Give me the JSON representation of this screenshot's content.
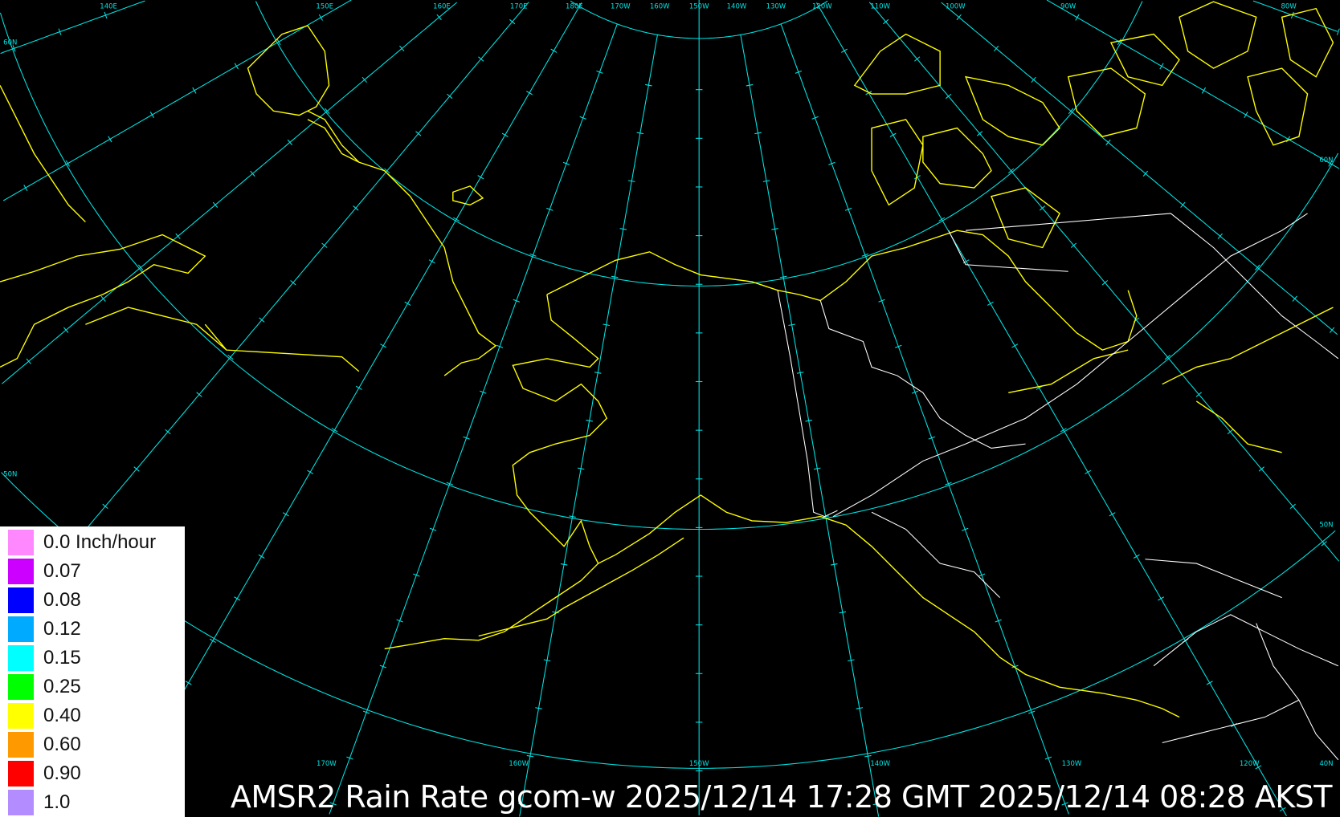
{
  "title": "AMSR2 Rain Rate gcom-w 2025/12/14 17:28 GMT 2025/12/14 08:28 AKST",
  "colors": {
    "background": "#000000",
    "grid": "#00e5e5",
    "coastline": "#ffff00",
    "borders": "#ffffff"
  },
  "grid_labels": {
    "top": [
      "140E",
      "150E",
      "160E",
      "170E",
      "180E",
      "170W",
      "160W",
      "150W",
      "140W",
      "130W",
      "120W",
      "110W",
      "100W",
      "90W",
      "80W"
    ],
    "left": [
      "60N",
      "50N"
    ],
    "right": [
      "60N",
      "50N"
    ],
    "bottom": [
      "170W",
      "160W",
      "150W",
      "140W",
      "130W",
      "120W",
      "40N"
    ]
  },
  "legend": {
    "items": [
      {
        "label": "0.0 Inch/hour",
        "color": "#ff88ff"
      },
      {
        "label": "0.07",
        "color": "#cc00ff"
      },
      {
        "label": "0.08",
        "color": "#0000ff"
      },
      {
        "label": "0.12",
        "color": "#00aaff"
      },
      {
        "label": "0.15",
        "color": "#00ffff"
      },
      {
        "label": "0.25",
        "color": "#00ff00"
      },
      {
        "label": "0.40",
        "color": "#ffff00"
      },
      {
        "label": "0.60",
        "color": "#ff9900"
      },
      {
        "label": "0.90",
        "color": "#ff0000"
      },
      {
        "label": "1.0",
        "color": "#b38cff"
      }
    ]
  }
}
